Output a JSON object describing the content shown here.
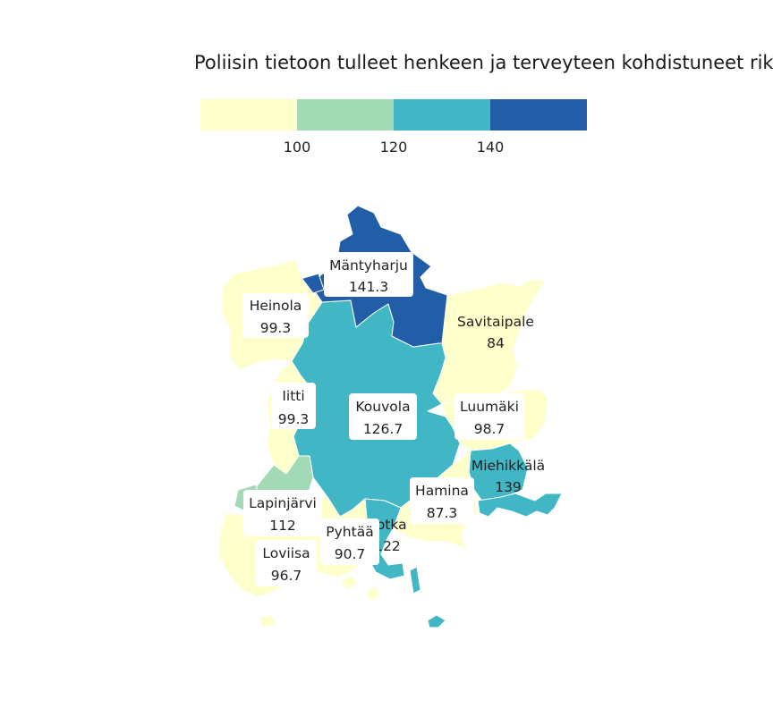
{
  "title": "Poliisin tietoon tulleet henkeen ja terveyteen kohdistuneet rikokset",
  "legend": {
    "breaks": [
      100,
      120,
      140
    ],
    "tick_labels": [
      "100",
      "120",
      "140"
    ],
    "colors": [
      "#ffffcc",
      "#a1dab4",
      "#41b6c4",
      "#225ea8"
    ]
  },
  "municipalities": [
    {
      "key": "mantyharju",
      "name": "Mäntyharju",
      "value": 141.3
    },
    {
      "key": "heinola",
      "name": "Heinola",
      "value": 99.3
    },
    {
      "key": "savitaipale",
      "name": "Savitaipale",
      "value": 84
    },
    {
      "key": "iitti",
      "name": "Iitti",
      "value": 99.3
    },
    {
      "key": "kouvola",
      "name": "Kouvola",
      "value": 126.7
    },
    {
      "key": "luumaki",
      "name": "Luumäki",
      "value": 98.7
    },
    {
      "key": "miehikkala",
      "name": "Miehikkälä",
      "value": 139
    },
    {
      "key": "hamina",
      "name": "Hamina",
      "value": 87.3
    },
    {
      "key": "lapinjarvi",
      "name": "Lapinjärvi",
      "value": 112
    },
    {
      "key": "kotka",
      "name": "Kotka",
      "value": 122
    },
    {
      "key": "pyhtaa",
      "name": "Pyhtää",
      "value": 90.7
    },
    {
      "key": "loviisa",
      "name": "Loviisa",
      "value": 96.7
    }
  ]
}
